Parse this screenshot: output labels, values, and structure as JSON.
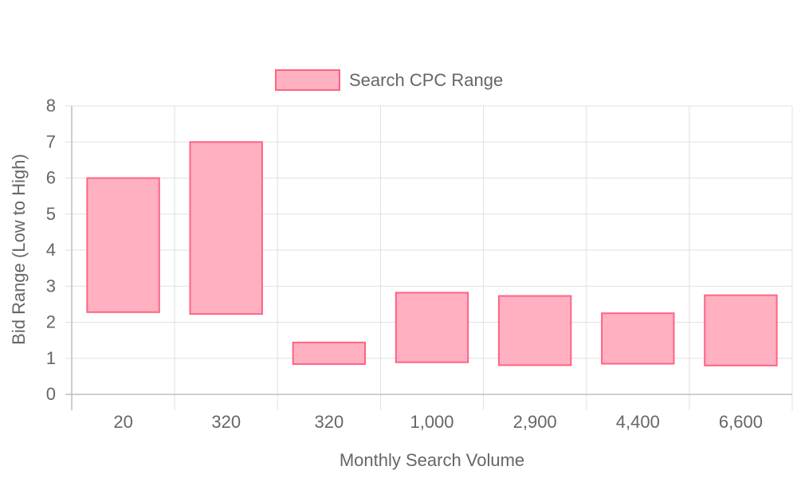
{
  "chart_data": {
    "type": "bar",
    "legend": {
      "position": "top-center",
      "entries": [
        "Search CPC Range"
      ]
    },
    "categories": [
      "20",
      "320",
      "320",
      "1,000",
      "2,900",
      "4,400",
      "6,600"
    ],
    "series": [
      {
        "name": "Search CPC Range",
        "ranges": [
          [
            2.28,
            6.0
          ],
          [
            2.23,
            7.0
          ],
          [
            0.84,
            1.44
          ],
          [
            0.89,
            2.82
          ],
          [
            0.81,
            2.73
          ],
          [
            0.85,
            2.25
          ],
          [
            0.8,
            2.75
          ]
        ]
      }
    ],
    "xlabel": "Monthly Search Volume",
    "ylabel": "Bid Range (Low to High)",
    "ylim": [
      0,
      8
    ],
    "yticks": [
      "0",
      "1",
      "2",
      "3",
      "4",
      "5",
      "6",
      "7",
      "8"
    ],
    "grid": true,
    "colors": {
      "bar_fill": "#ffb1c1",
      "bar_border": "#ff6384",
      "grid": "#e1e1e1",
      "axis": "#bdbdbd",
      "text": "#666666"
    }
  }
}
